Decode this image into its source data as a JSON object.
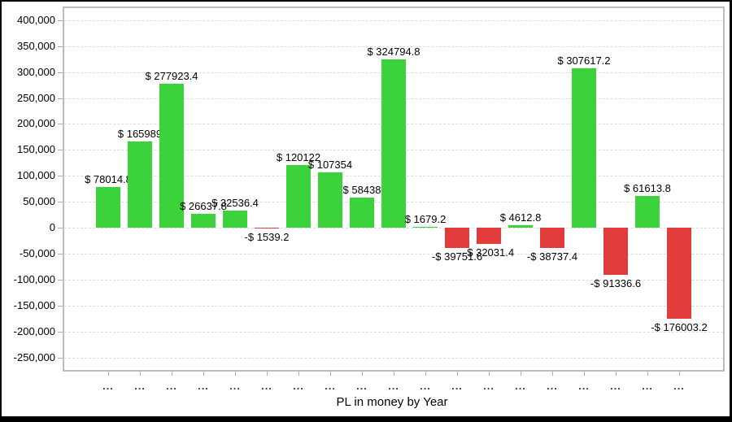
{
  "chart_data": {
    "type": "bar",
    "title": "PL in money by Year",
    "categories": [
      "...",
      "...",
      "...",
      "...",
      "...",
      "...",
      "...",
      "...",
      "...",
      "...",
      "...",
      "...",
      "...",
      "...",
      "...",
      "...",
      "...",
      "...",
      "..."
    ],
    "values": [
      78014.8,
      165989,
      277923.4,
      26637.8,
      32536.4,
      -1539.2,
      120122,
      107354,
      58438,
      324794.8,
      1679.2,
      -39751.6,
      -32031.4,
      4612.8,
      -38737.4,
      307617.2,
      -91336.6,
      61613.8,
      -176003.2
    ],
    "bar_labels": [
      "$ 78014.8",
      "$ 165989",
      "$ 277923.4",
      "$ 26637.8",
      "$ 32536.4",
      "-$ 1539.2",
      "$ 120122",
      "$ 107354",
      "$ 58438",
      "$ 324794.8",
      "$ 1679.2",
      "-$ 39751.6",
      "-$ 32031.4",
      "$ 4612.8",
      "-$ 38737.4",
      "$ 307617.2",
      "-$ 91336.6",
      "$ 61613.8",
      "-$ 176003.2"
    ],
    "xlabel": "PL in money by Year",
    "ylabel": "",
    "ylim": [
      -250000,
      400000
    ],
    "ytick_values": [
      400000,
      350000,
      300000,
      250000,
      200000,
      150000,
      100000,
      50000,
      0,
      -50000,
      -100000,
      -150000,
      -200000,
      -250000
    ],
    "ytick_labels": [
      "400,000",
      "350,000",
      "300,000",
      "250,000",
      "200,000",
      "150,000",
      "100,000",
      "50,000",
      "0",
      "-50,000",
      "-100,000",
      "-150,000",
      "-200,000",
      "-250,000"
    ],
    "positive_color": "#3bd23b",
    "negative_color": "#e23b3c",
    "grid": "horizontal-dashed",
    "legend": "none"
  }
}
